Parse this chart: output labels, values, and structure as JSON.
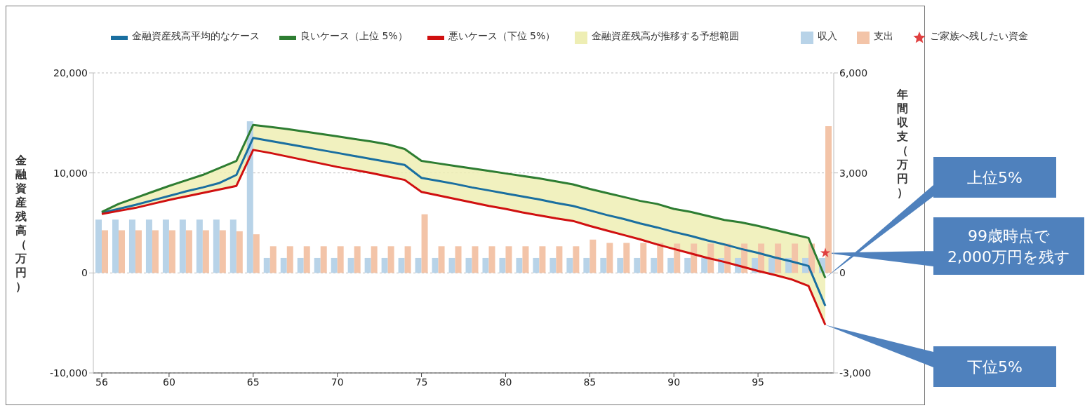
{
  "chart_data": {
    "type": "line",
    "ylabel": "金融資産残高（万円）",
    "y2label": "年間収支（万円）",
    "x": [
      56,
      57,
      58,
      59,
      60,
      61,
      62,
      63,
      64,
      65,
      66,
      67,
      68,
      69,
      70,
      71,
      72,
      73,
      74,
      75,
      76,
      77,
      78,
      79,
      80,
      81,
      82,
      83,
      84,
      85,
      86,
      87,
      88,
      89,
      90,
      91,
      92,
      93,
      94,
      95,
      96,
      97,
      98,
      99
    ],
    "xlim": [
      55.5,
      99.5
    ],
    "xticks": [
      56,
      60,
      65,
      70,
      75,
      80,
      85,
      90,
      95
    ],
    "ylim": [
      -10000,
      20000
    ],
    "yticks": [
      {
        "value": -10000,
        "label": "-10,000"
      },
      0,
      {
        "value": 10000,
        "label": "10,000"
      },
      {
        "value": 20000,
        "label": "20,000"
      }
    ],
    "y2lim": [
      -3000,
      6000
    ],
    "y2ticks": [
      {
        "value": -3000,
        "label": "-3,000"
      },
      0,
      {
        "value": 3000,
        "label": "3,000"
      },
      {
        "value": 6000,
        "label": "6,000"
      }
    ],
    "grid": "y",
    "legend": "top",
    "marker": "none",
    "line_style": "solid",
    "series": [
      {
        "name": "金融資産残高平均的なケース",
        "color": "#1a6fa0",
        "values": [
          6000,
          6400,
          6800,
          7250,
          7700,
          8150,
          8550,
          9000,
          9800,
          13500,
          13200,
          12900,
          12600,
          12300,
          12000,
          11700,
          11400,
          11100,
          10800,
          9500,
          9200,
          8900,
          8550,
          8250,
          7950,
          7650,
          7350,
          7000,
          6700,
          6250,
          5800,
          5400,
          4950,
          4550,
          4100,
          3700,
          3250,
          2850,
          2400,
          2000,
          1550,
          1150,
          700,
          -3300
        ],
        "lower": [
          5900,
          6200,
          6500,
          6900,
          7300,
          7650,
          8000,
          8350,
          8700,
          12300,
          12000,
          11650,
          11300,
          10950,
          10600,
          10300,
          10000,
          9650,
          9300,
          8100,
          7750,
          7400,
          7050,
          6700,
          6400,
          6050,
          5750,
          5450,
          5200,
          4700,
          4250,
          3800,
          3350,
          2850,
          2400,
          1950,
          1500,
          1100,
          650,
          200,
          -200,
          -650,
          -1300,
          -5200
        ],
        "upper": [
          6100,
          6900,
          7500,
          8100,
          8700,
          9250,
          9800,
          10500,
          11200,
          14800,
          14600,
          14400,
          14150,
          13900,
          13650,
          13400,
          13150,
          12850,
          12400,
          11200,
          10950,
          10700,
          10450,
          10200,
          9950,
          9700,
          9450,
          9150,
          8850,
          8400,
          8000,
          7600,
          7200,
          6900,
          6400,
          6100,
          5700,
          5300,
          5050,
          4700,
          4300,
          3900,
          3500,
          -500
        ]
      },
      {
        "name": "良いケース（上位 5%）",
        "color": "#2e7d32",
        "values": [
          6100,
          6900,
          7500,
          8100,
          8700,
          9250,
          9800,
          10500,
          11200,
          14800,
          14600,
          14400,
          14150,
          13900,
          13650,
          13400,
          13150,
          12850,
          12400,
          11200,
          10950,
          10700,
          10450,
          10200,
          9950,
          9700,
          9450,
          9150,
          8850,
          8400,
          8000,
          7600,
          7200,
          6900,
          6400,
          6100,
          5700,
          5300,
          5050,
          4700,
          4300,
          3900,
          3500,
          -500
        ]
      },
      {
        "name": "悪いケース（下位 5%）",
        "color": "#d01010",
        "values": [
          5900,
          6200,
          6500,
          6900,
          7300,
          7650,
          8000,
          8350,
          8700,
          12300,
          12000,
          11650,
          11300,
          10950,
          10600,
          10300,
          10000,
          9650,
          9300,
          8100,
          7750,
          7400,
          7050,
          6700,
          6400,
          6050,
          5750,
          5450,
          5200,
          4700,
          4250,
          3800,
          3350,
          2850,
          2400,
          1950,
          1500,
          1100,
          650,
          200,
          -200,
          -650,
          -1300,
          -5200
        ]
      },
      {
        "type": "area",
        "name": "金融資産残高が推移する予想範囲",
        "color": "#eeeeb4",
        "values": [
          null,
          null,
          null,
          null,
          null,
          null,
          null,
          null,
          null,
          null,
          null,
          null,
          null,
          null,
          null,
          null,
          null,
          null,
          null,
          null,
          null,
          null,
          null,
          null,
          null,
          null,
          null,
          null,
          null,
          null,
          null,
          null,
          null,
          null,
          null,
          null,
          null,
          null,
          null,
          null,
          null,
          null,
          null,
          null
        ]
      },
      {
        "type": "bar",
        "axis": "y2",
        "name": "収入",
        "color": "#b8d3e8",
        "values": [
          1600,
          1600,
          1600,
          1600,
          1600,
          1600,
          1600,
          1600,
          1600,
          4550,
          450,
          450,
          450,
          450,
          450,
          450,
          450,
          450,
          450,
          450,
          450,
          450,
          450,
          450,
          450,
          450,
          450,
          450,
          450,
          450,
          450,
          450,
          450,
          450,
          450,
          450,
          450,
          450,
          450,
          450,
          450,
          450,
          450,
          450
        ]
      },
      {
        "type": "bar",
        "axis": "y2",
        "name": "支出",
        "color": "#f3c4a8",
        "values": [
          1280,
          1280,
          1280,
          1280,
          1280,
          1280,
          1280,
          1280,
          1250,
          1160,
          800,
          800,
          800,
          800,
          800,
          800,
          800,
          800,
          800,
          1760,
          800,
          800,
          800,
          800,
          800,
          800,
          800,
          800,
          800,
          1000,
          900,
          900,
          900,
          900,
          880,
          880,
          880,
          880,
          880,
          880,
          880,
          880,
          880,
          4400
        ]
      },
      {
        "type": "scatter",
        "name": "ご家族へ残したい資金",
        "color": "#e04040",
        "marker": "star",
        "x": [
          99
        ],
        "values": [
          2000
        ]
      }
    ],
    "annotations": [
      "上位5%",
      {
        "text": "99歳時点で\n2,000万円を残す",
        "x": 99,
        "y": 2000
      },
      "下位5%"
    ]
  }
}
